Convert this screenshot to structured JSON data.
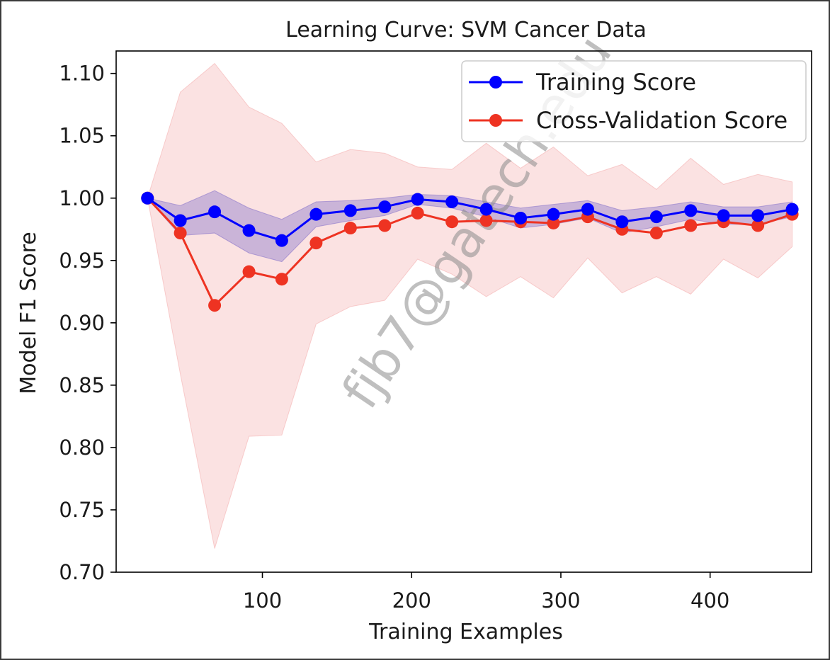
{
  "chart_data": {
    "type": "line",
    "title": "Learning Curve: SVM Cancer Data",
    "xlabel": "Training Examples",
    "ylabel": "Model F1 Score",
    "xlim": [
      2,
      468
    ],
    "ylim": [
      0.7,
      1.118
    ],
    "xticks": [
      100,
      200,
      300,
      400
    ],
    "yticks": [
      0.7,
      0.75,
      0.8,
      0.85,
      0.9,
      0.95,
      1.0,
      1.05,
      1.1
    ],
    "grid": false,
    "legend_position": "top-right",
    "watermark": "fjb7@gatech.edu",
    "x": [
      23,
      45,
      68,
      91,
      113,
      136,
      159,
      182,
      204,
      227,
      250,
      273,
      295,
      318,
      341,
      364,
      387,
      409,
      432,
      455
    ],
    "series": [
      {
        "name": "Training Score",
        "color": "#0000ff",
        "band_color": "#7b68c8",
        "values": [
          1.0,
          0.982,
          0.989,
          0.974,
          0.966,
          0.987,
          0.99,
          0.993,
          0.999,
          0.997,
          0.991,
          0.984,
          0.987,
          0.991,
          0.981,
          0.985,
          0.99,
          0.986,
          0.986,
          0.991
        ],
        "upper": [
          1.0,
          0.994,
          1.006,
          0.992,
          0.983,
          0.997,
          0.998,
          1.0,
          1.003,
          1.002,
          0.997,
          0.992,
          0.995,
          0.998,
          0.99,
          0.993,
          0.997,
          0.993,
          0.993,
          0.997
        ],
        "lower": [
          1.0,
          0.97,
          0.972,
          0.956,
          0.949,
          0.977,
          0.982,
          0.986,
          0.995,
          0.992,
          0.985,
          0.976,
          0.979,
          0.984,
          0.972,
          0.977,
          0.983,
          0.979,
          0.979,
          0.985
        ]
      },
      {
        "name": "Cross-Validation Score",
        "color": "#ee3322",
        "band_color": "#f4a6a6",
        "values": [
          1.0,
          0.972,
          0.914,
          0.941,
          0.935,
          0.964,
          0.976,
          0.978,
          0.988,
          0.981,
          0.982,
          0.981,
          0.98,
          0.985,
          0.975,
          0.972,
          0.978,
          0.981,
          0.978,
          0.987
        ],
        "upper": [
          1.0,
          1.085,
          1.108,
          1.073,
          1.06,
          1.029,
          1.039,
          1.036,
          1.025,
          1.023,
          1.044,
          1.024,
          1.041,
          1.018,
          1.027,
          1.007,
          1.032,
          1.011,
          1.019,
          1.013
        ],
        "lower": [
          1.0,
          0.859,
          0.719,
          0.809,
          0.81,
          0.899,
          0.913,
          0.918,
          0.951,
          0.939,
          0.921,
          0.937,
          0.92,
          0.952,
          0.924,
          0.937,
          0.923,
          0.951,
          0.936,
          0.961
        ]
      }
    ]
  }
}
